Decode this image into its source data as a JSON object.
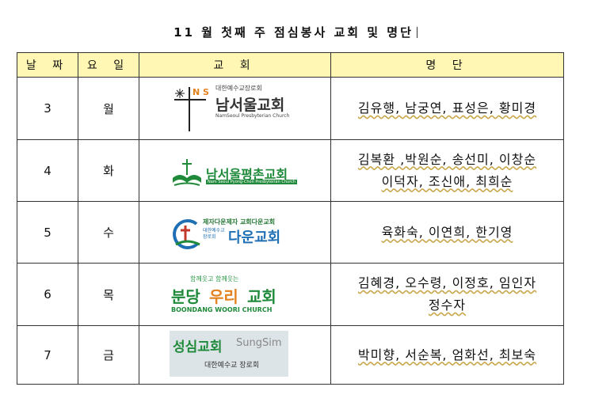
{
  "title": "11 월 첫째 주 점심봉사 교회 및 명단",
  "headers": {
    "date": "날 짜",
    "weekday": "요 일",
    "church": "교 회",
    "roster": "명 단"
  },
  "rows": [
    {
      "date": "3",
      "weekday": "월",
      "names": [
        "김유행, 남궁연, 표성은, 황미경"
      ],
      "logo": {
        "top": "대한예수교장로회",
        "name": "남서울교회",
        "sub": "NamSeoul Presbyterian Church",
        "mark": "N S"
      }
    },
    {
      "date": "4",
      "weekday": "화",
      "names": [
        "김복환 ,박원순, 송선미, 이창순",
        "이덕자, 조신애, 최희순"
      ],
      "logo": {
        "name": "남서울평촌교회",
        "sub": "Nam Seoul Pyong-Chon Presbyterian Church"
      }
    },
    {
      "date": "5",
      "weekday": "수",
      "names": [
        "육화숙, 이연희, 한기영"
      ],
      "logo": {
        "top": "제자다운제자  교회다운교회",
        "denom": "대한예수교 장로회",
        "name": "다운교회"
      }
    },
    {
      "date": "6",
      "weekday": "목",
      "names": [
        "김혜경, 오수령, 이정호, 임인자",
        "정수자"
      ],
      "logo": {
        "top": "함께웃고 함께웃는",
        "name_a": "분당",
        "name_b": "우리",
        "name_c": "교회",
        "sub": "BOONDANG WOORI CHURCH"
      }
    },
    {
      "date": "7",
      "weekday": "금",
      "names": [
        "박미향, 서순복, 엄화선, 최보숙"
      ],
      "logo": {
        "name": "성심교회",
        "name_en": "SungSim",
        "sub": "대한예수교 장로회"
      }
    }
  ],
  "colors": {
    "header_bg": "#fff7b3",
    "green": "#1f8a3a",
    "orange": "#e3821e",
    "grey_logo_bg": "#dde4e8"
  }
}
